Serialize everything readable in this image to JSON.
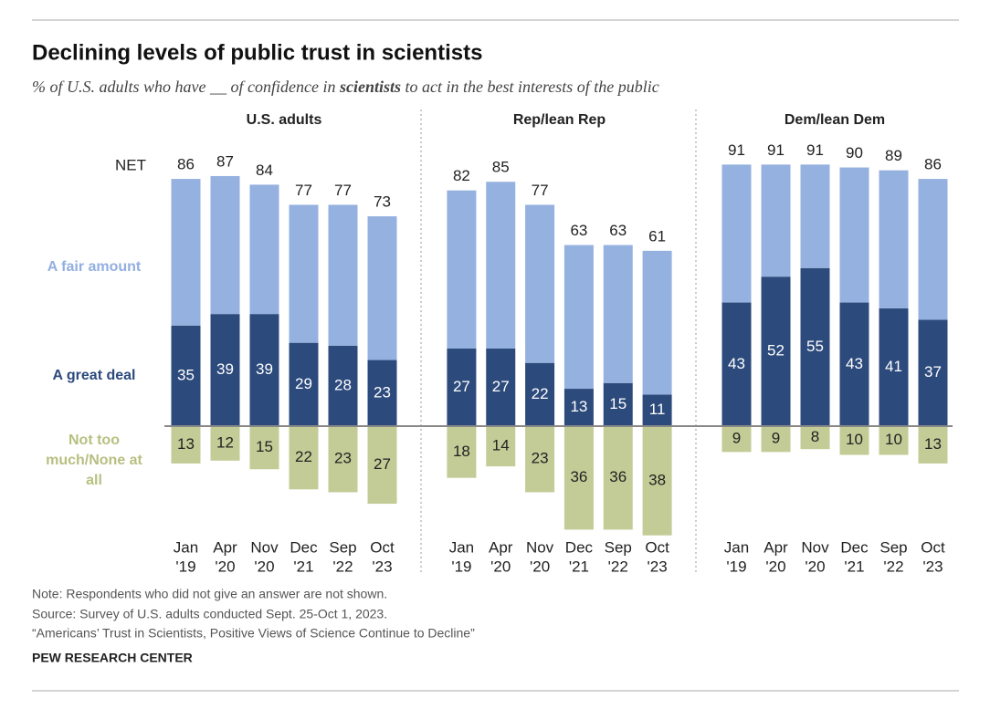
{
  "header": {
    "title": "Declining levels of public trust in scientists",
    "subtitle": [
      "% of U.S. adults who have __ of confidence in ",
      "scientists",
      " to act in the best interests of the public"
    ]
  },
  "chart_data": [
    {
      "type": "bar",
      "stacked": true,
      "title": "U.S. adults",
      "categories": [
        [
          "Jan",
          "'19"
        ],
        [
          "Apr",
          "'20"
        ],
        [
          "Nov",
          "'20"
        ],
        [
          "Dec",
          "'21"
        ],
        [
          "Sep",
          "'22"
        ],
        [
          "Oct",
          "'23"
        ]
      ],
      "ylim": [
        -40,
        100
      ],
      "totals": {
        "name": "NET",
        "values": [
          86,
          87,
          84,
          77,
          77,
          73
        ]
      },
      "series": [
        {
          "name": "A great deal",
          "color": "#2c4a7c",
          "values": [
            35,
            39,
            39,
            29,
            28,
            23
          ]
        },
        {
          "name": "A fair amount",
          "color": "#95b1df",
          "values": [
            51,
            48,
            45,
            48,
            49,
            50
          ]
        },
        {
          "name": "Not too much/None at all",
          "color": "#c3cb96",
          "values": [
            -13,
            -12,
            -15,
            -22,
            -23,
            -27
          ],
          "value_labels": [
            "13",
            "12",
            "15",
            "22",
            "23",
            "27"
          ]
        }
      ]
    },
    {
      "type": "bar",
      "stacked": true,
      "title": "Rep/lean Rep",
      "categories": [
        [
          "Jan",
          "'19"
        ],
        [
          "Apr",
          "'20"
        ],
        [
          "Nov",
          "'20"
        ],
        [
          "Dec",
          "'21"
        ],
        [
          "Sep",
          "'22"
        ],
        [
          "Oct",
          "'23"
        ]
      ],
      "ylim": [
        -40,
        100
      ],
      "totals": {
        "values": [
          82,
          85,
          77,
          63,
          63,
          61
        ]
      },
      "series": [
        {
          "color": "#2c4a7c",
          "values": [
            27,
            27,
            22,
            13,
            15,
            11
          ]
        },
        {
          "color": "#95b1df",
          "values": [
            55,
            58,
            55,
            50,
            48,
            50
          ]
        },
        {
          "color": "#c3cb96",
          "values": [
            -18,
            -14,
            -23,
            -36,
            -36,
            -38
          ],
          "value_labels": [
            "18",
            "14",
            "23",
            "36",
            "36",
            "38"
          ]
        }
      ]
    },
    {
      "type": "bar",
      "stacked": true,
      "title": "Dem/lean Dem",
      "categories": [
        [
          "Jan",
          "'19"
        ],
        [
          "Apr",
          "'20"
        ],
        [
          "Nov",
          "'20"
        ],
        [
          "Dec",
          "'21"
        ],
        [
          "Sep",
          "'22"
        ],
        [
          "Oct",
          "'23"
        ]
      ],
      "ylim": [
        -40,
        100
      ],
      "totals": {
        "values": [
          91,
          91,
          91,
          90,
          89,
          86
        ]
      },
      "series": [
        {
          "color": "#2c4a7c",
          "values": [
            43,
            52,
            55,
            43,
            41,
            37
          ]
        },
        {
          "color": "#95b1df",
          "values": [
            48,
            39,
            36,
            47,
            48,
            49
          ]
        },
        {
          "color": "#c3cb96",
          "values": [
            -9,
            -9,
            -8,
            -10,
            -10,
            -13
          ],
          "value_labels": [
            "9",
            "9",
            "8",
            "10",
            "10",
            "13"
          ]
        }
      ]
    }
  ],
  "footer": {
    "note": "Note: Respondents who did not give an answer are not shown.",
    "source": "Source: Survey of U.S. adults conducted Sept. 25-Oct 1, 2023.",
    "report": "“Americans’ Trust in Scientists, Positive Views of Science Continue to Decline”",
    "brand": "PEW RESEARCH CENTER"
  }
}
